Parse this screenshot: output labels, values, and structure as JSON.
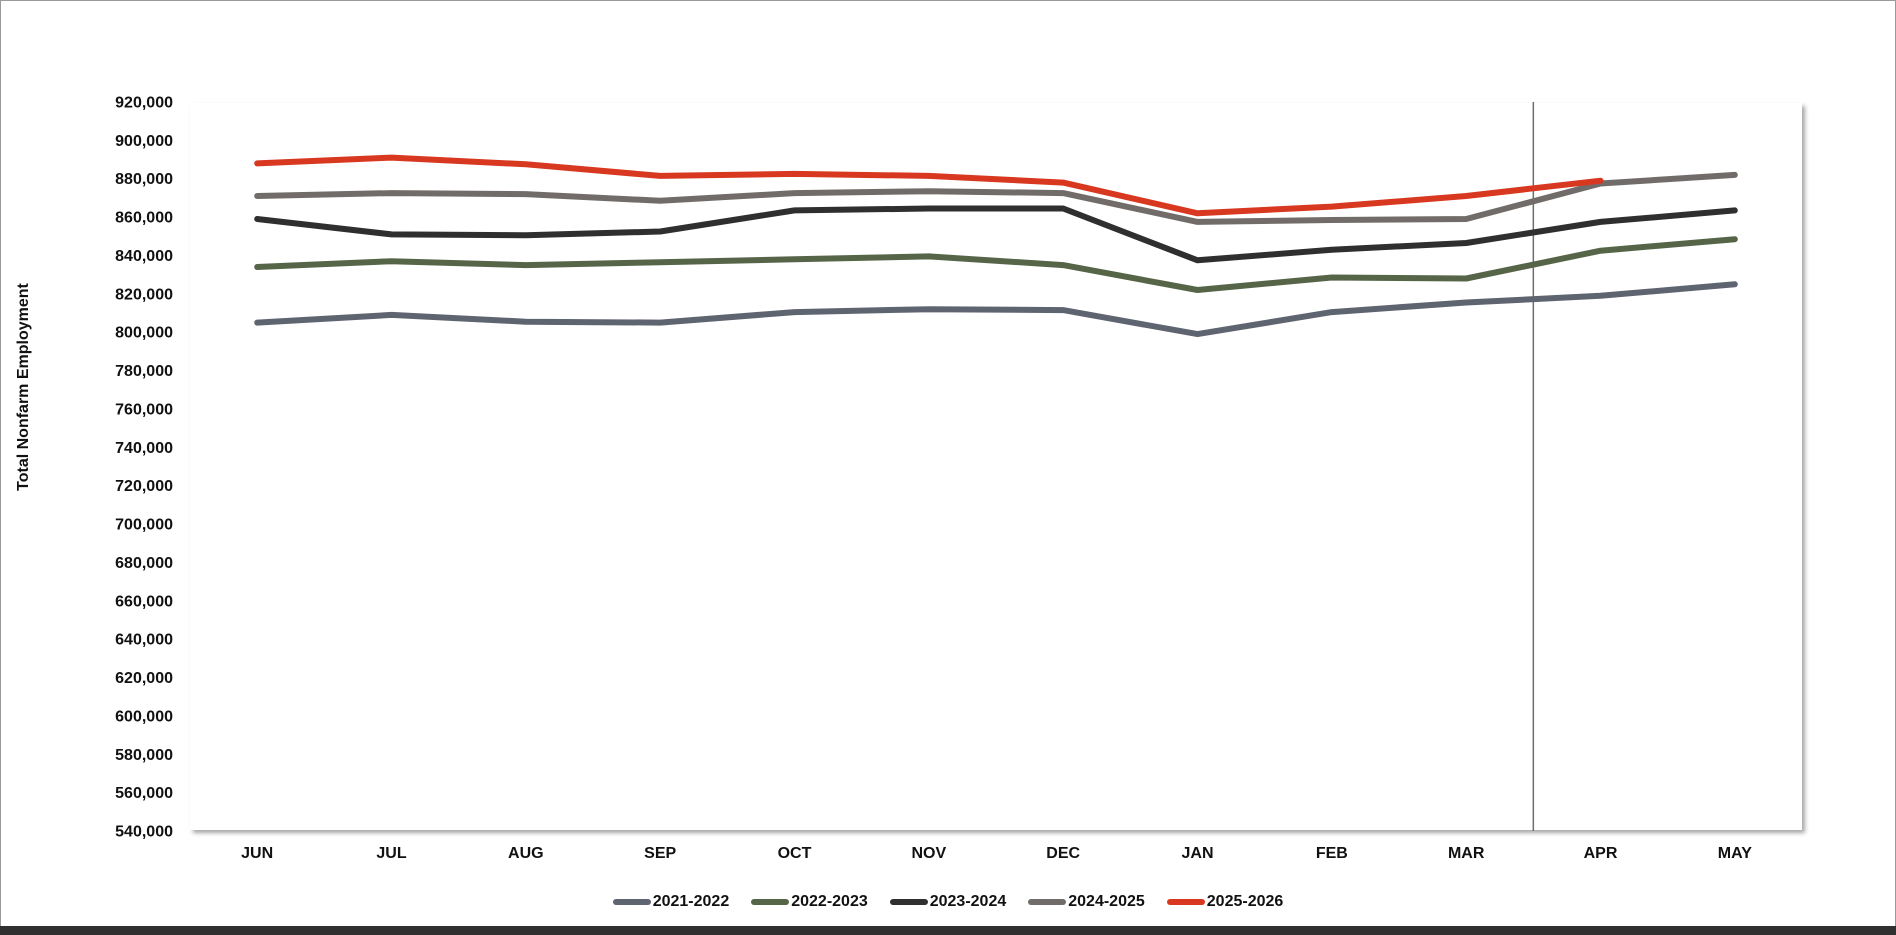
{
  "chart_data": {
    "type": "line",
    "ylabel": "Total Nonfarm Employment",
    "categories": [
      "JUN",
      "JUL",
      "AUG",
      "SEP",
      "OCT",
      "NOV",
      "DEC",
      "JAN",
      "FEB",
      "MAR",
      "APR",
      "MAY"
    ],
    "ylim": [
      540000,
      920000
    ],
    "ytick_step": 20000,
    "grid": false,
    "legend_position": "bottom",
    "reference_line_after_category": "MAR",
    "series": [
      {
        "name": "2021-2022",
        "color": "#5e6470",
        "values": [
          805000,
          809000,
          805500,
          805000,
          810500,
          812000,
          811500,
          799000,
          810500,
          815500,
          819000,
          825000
        ]
      },
      {
        "name": "2022-2023",
        "color": "#566548",
        "values": [
          834000,
          837000,
          835000,
          836500,
          838000,
          839500,
          835000,
          822000,
          828500,
          828000,
          842500,
          848500
        ]
      },
      {
        "name": "2023-2024",
        "color": "#2f2f2f",
        "values": [
          859000,
          851000,
          850500,
          852500,
          863500,
          864500,
          864500,
          837500,
          843000,
          846500,
          857500,
          863500
        ]
      },
      {
        "name": "2024-2025",
        "color": "#716c69",
        "values": [
          871000,
          872500,
          872000,
          868500,
          872500,
          873500,
          872500,
          857500,
          858500,
          859000,
          877500,
          882000
        ]
      },
      {
        "name": "2025-2026",
        "color": "#d8381f",
        "values": [
          888000,
          891000,
          887500,
          881500,
          882500,
          881500,
          878000,
          862000,
          865500,
          871000,
          879000,
          null
        ]
      }
    ]
  }
}
